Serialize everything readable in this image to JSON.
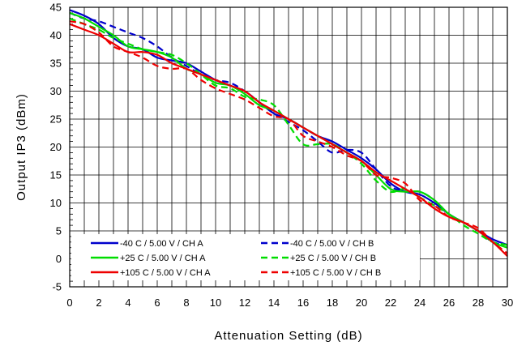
{
  "chart_data": {
    "type": "line",
    "title": "",
    "xlabel": "Attenuation Setting (dB)",
    "ylabel": "Output IP3 (dBm)",
    "xlim": [
      0,
      30
    ],
    "ylim": [
      -5,
      45
    ],
    "xticks": [
      0,
      2,
      4,
      6,
      8,
      10,
      12,
      14,
      16,
      18,
      20,
      22,
      24,
      26,
      28,
      30
    ],
    "yticks": [
      -5,
      0,
      5,
      10,
      15,
      20,
      25,
      30,
      35,
      40,
      45
    ],
    "grid": true,
    "legend_position": "bottom-left",
    "x": [
      0,
      1,
      2,
      3,
      4,
      5,
      6,
      7,
      8,
      9,
      10,
      11,
      12,
      13,
      14,
      15,
      16,
      17,
      18,
      19,
      20,
      21,
      22,
      23,
      24,
      25,
      26,
      27,
      28,
      29,
      30
    ],
    "series": [
      {
        "name": "-40 C  /  5.00 V /  CH A",
        "color": "#0000cc",
        "dash": "solid",
        "values": [
          44.5,
          43.5,
          42.0,
          39.5,
          38.0,
          37.5,
          36.0,
          35.5,
          35.0,
          33.5,
          32.0,
          31.0,
          30.0,
          28.0,
          26.0,
          25.0,
          23.5,
          22.0,
          21.0,
          19.5,
          18.0,
          16.0,
          13.5,
          12.0,
          11.5,
          10.0,
          8.0,
          6.5,
          5.0,
          3.5,
          2.5
        ]
      },
      {
        "name": "-40 C  /  5.00 V /  CH B",
        "color": "#0000cc",
        "dash": "dashed",
        "values": [
          44.0,
          43.0,
          42.5,
          41.5,
          40.5,
          39.5,
          38.0,
          36.0,
          34.5,
          33.0,
          32.0,
          31.5,
          30.0,
          28.0,
          26.0,
          24.5,
          23.0,
          21.0,
          19.0,
          19.5,
          19.0,
          16.0,
          13.0,
          12.0,
          12.0,
          10.5,
          8.0,
          6.5,
          5.0,
          3.0,
          2.5
        ]
      },
      {
        "name": "+25 C  /  5.00 V /  CH A",
        "color": "#00dd00",
        "dash": "solid",
        "values": [
          44.0,
          43.0,
          41.5,
          40.0,
          38.0,
          37.5,
          37.0,
          36.0,
          34.0,
          33.0,
          31.5,
          31.0,
          29.5,
          27.5,
          26.5,
          25.0,
          23.5,
          22.0,
          20.5,
          19.0,
          17.5,
          15.0,
          12.5,
          12.0,
          12.0,
          10.5,
          8.0,
          6.5,
          5.0,
          3.0,
          2.0
        ]
      },
      {
        "name": "+25 C  /  5.00 V /  CH B",
        "color": "#00dd00",
        "dash": "dashed",
        "values": [
          43.0,
          42.0,
          41.0,
          39.5,
          38.5,
          37.5,
          37.0,
          36.5,
          35.0,
          33.0,
          31.0,
          30.5,
          29.0,
          28.5,
          27.5,
          24.0,
          20.5,
          20.5,
          20.5,
          19.0,
          17.0,
          14.0,
          12.0,
          12.5,
          11.0,
          9.5,
          8.0,
          6.0,
          4.5,
          3.0,
          2.5
        ]
      },
      {
        "name": "+105 C  /  5.00 V /  CH A",
        "color": "#ee0000",
        "dash": "solid",
        "values": [
          42.0,
          41.0,
          40.0,
          38.5,
          37.0,
          37.0,
          36.5,
          35.0,
          34.0,
          33.0,
          32.0,
          31.0,
          30.0,
          28.0,
          26.5,
          25.0,
          23.5,
          22.0,
          20.5,
          19.0,
          17.5,
          15.5,
          14.0,
          12.5,
          11.0,
          9.0,
          7.5,
          6.5,
          5.0,
          3.0,
          0.5
        ]
      },
      {
        "name": "+105 C  /  5.00 V /  CH B",
        "color": "#ee0000",
        "dash": "dashed",
        "values": [
          42.5,
          42.0,
          40.5,
          38.0,
          37.0,
          36.0,
          34.5,
          34.0,
          34.0,
          32.0,
          30.5,
          29.5,
          28.5,
          27.0,
          25.5,
          25.0,
          22.0,
          21.0,
          20.0,
          18.5,
          17.5,
          15.0,
          14.5,
          13.5,
          10.5,
          9.5,
          7.5,
          6.5,
          5.5,
          3.0,
          1.0
        ]
      }
    ]
  }
}
